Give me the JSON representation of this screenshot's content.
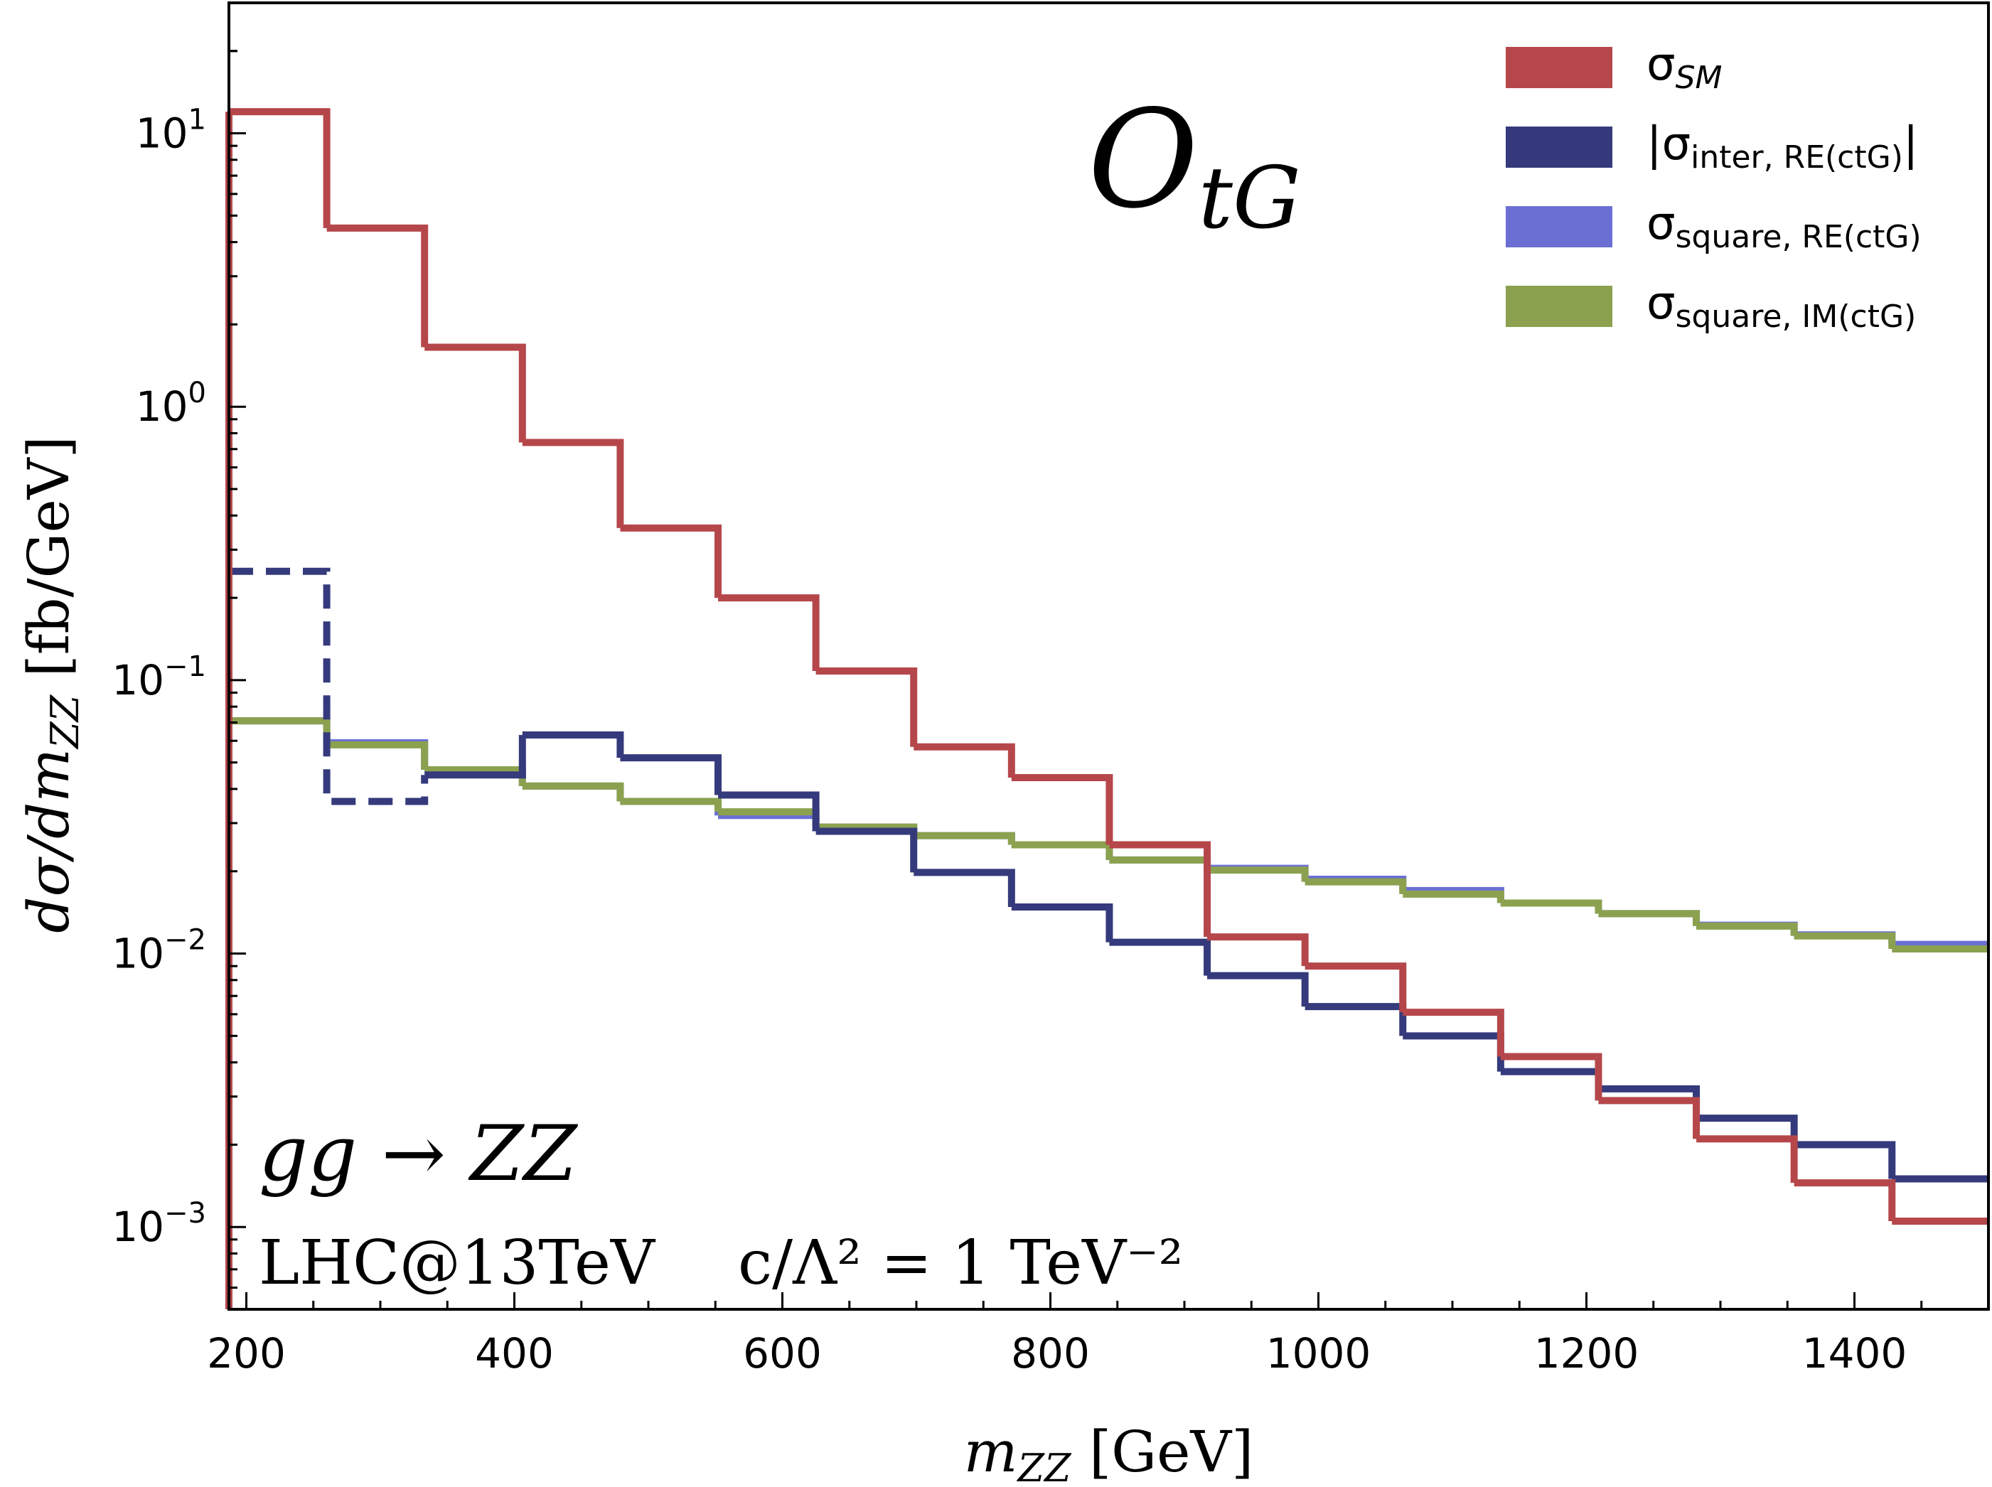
{
  "chart_data": {
    "type": "step-histogram",
    "title": "",
    "operator_label": {
      "main": "O",
      "sub": "tG"
    },
    "annotations": {
      "process": "gg → ZZ",
      "collider": "LHC@13TeV",
      "coupling": "c/Λ² = 1 TeV⁻²"
    },
    "xlabel": {
      "main": "m",
      "sub": "ZZ",
      "unit": "[GeV]"
    },
    "ylabel": {
      "main": "dσ/dm",
      "sub": "ZZ",
      "unit": "[fb/GeV]"
    },
    "xlim": [
      187,
      1500
    ],
    "ylim": [
      0.0005,
      30
    ],
    "yscale": "log",
    "xticks": [
      200,
      400,
      600,
      800,
      1000,
      1200,
      1400
    ],
    "yticks": [
      {
        "value": 0.001,
        "base": "10",
        "exp": "−3"
      },
      {
        "value": 0.01,
        "base": "10",
        "exp": "−2"
      },
      {
        "value": 0.1,
        "base": "10",
        "exp": "−1"
      },
      {
        "value": 1,
        "base": "10",
        "exp": "0"
      },
      {
        "value": 10,
        "base": "10",
        "exp": "1"
      }
    ],
    "bin_edges": [
      187,
      260,
      333,
      406,
      479,
      552,
      625,
      698,
      771,
      844,
      917,
      990,
      1063,
      1136,
      1209,
      1282,
      1355,
      1428,
      1500
    ],
    "series": [
      {
        "name": "σ_SM",
        "label_main": "σ",
        "label_sub": "SM",
        "color": "#b5474b",
        "dashed_first_bin": false,
        "values": [
          12.0,
          4.5,
          1.65,
          0.74,
          0.36,
          0.2,
          0.108,
          0.057,
          0.044,
          0.025,
          0.0115,
          0.009,
          0.0061,
          0.0042,
          0.0029,
          0.0021,
          0.00145,
          0.00105
        ]
      },
      {
        "name": "|σ_inter, RE(ctG)|",
        "label_main": "|σ",
        "label_sub": "inter, RE(ctG)",
        "label_suffix": "|",
        "color": "#353a7c",
        "dashed_first_bin": true,
        "values": [
          0.25,
          0.045,
          0.045,
          0.063,
          0.052,
          0.038,
          0.028,
          0.0198,
          0.0148,
          0.011,
          0.0083,
          0.0064,
          0.005,
          0.0037,
          0.0032,
          0.0025,
          0.002,
          0.0015
        ],
        "dashed_levels": [
          0.25,
          0.036
        ]
      },
      {
        "name": "σ_square, RE(ctG)",
        "label_main": "σ",
        "label_sub": "square, RE(ctG)",
        "color": "#6b6fd4",
        "dashed_first_bin": false,
        "values": [
          0.071,
          0.059,
          0.047,
          0.041,
          0.036,
          0.032,
          0.029,
          0.027,
          0.025,
          0.022,
          0.0205,
          0.0187,
          0.017,
          0.0153,
          0.014,
          0.0127,
          0.0117,
          0.0108
        ]
      },
      {
        "name": "σ_square, IM(ctG)",
        "label_main": "σ",
        "label_sub": "square, IM(ctG)",
        "color": "#8ba14f",
        "dashed_first_bin": false,
        "values": [
          0.071,
          0.058,
          0.047,
          0.041,
          0.036,
          0.033,
          0.029,
          0.027,
          0.025,
          0.022,
          0.0202,
          0.0183,
          0.0165,
          0.0153,
          0.014,
          0.0126,
          0.0116,
          0.0104
        ]
      }
    ],
    "legend_position": "top-right",
    "grid": false
  }
}
